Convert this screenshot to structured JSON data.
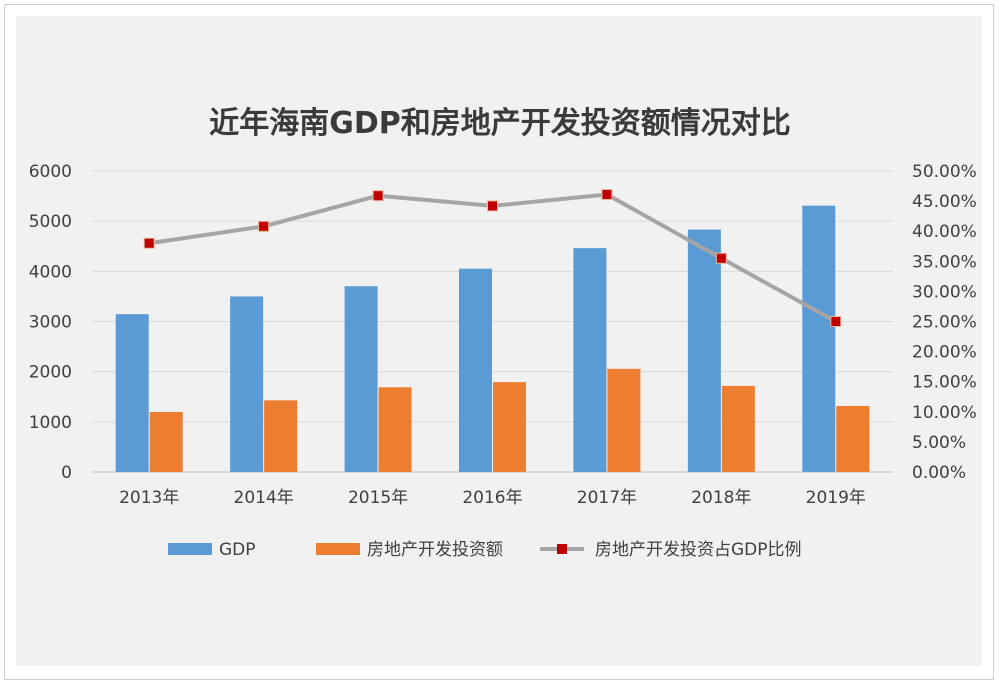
{
  "chart_data": {
    "type": "bar",
    "title": "近年海南GDP和房地产开发投资额情况对比",
    "categories": [
      "2013年",
      "2014年",
      "2015年",
      "2016年",
      "2017年",
      "2018年",
      "2019年"
    ],
    "series": [
      {
        "name": "GDP",
        "type": "bar",
        "axis": "left",
        "color": "#5b9bd5",
        "values": [
          3146,
          3500,
          3703,
          4053,
          4463,
          4832,
          5309
        ]
      },
      {
        "name": "房地产开发投资额",
        "type": "bar",
        "axis": "left",
        "color": "#ed7d31",
        "values": [
          1196,
          1428,
          1688,
          1791,
          2057,
          1716,
          1316
        ]
      },
      {
        "name": "房地产开发投资占GDP比例",
        "type": "line",
        "axis": "right",
        "color": "#a5a5a5",
        "marker_color": "#c00000",
        "values": [
          0.38,
          0.408,
          0.459,
          0.442,
          0.461,
          0.355,
          0.25
        ]
      }
    ],
    "y_left": {
      "min": 0,
      "max": 6000,
      "ticks": [
        "0",
        "1000",
        "2000",
        "3000",
        "4000",
        "5000",
        "6000"
      ]
    },
    "y_right": {
      "min": 0,
      "max": 0.5,
      "ticks": [
        "0.00%",
        "5.00%",
        "10.00%",
        "15.00%",
        "20.00%",
        "25.00%",
        "30.00%",
        "35.00%",
        "40.00%",
        "45.00%",
        "50.00%"
      ]
    },
    "grid": true,
    "legend_position": "bottom"
  }
}
